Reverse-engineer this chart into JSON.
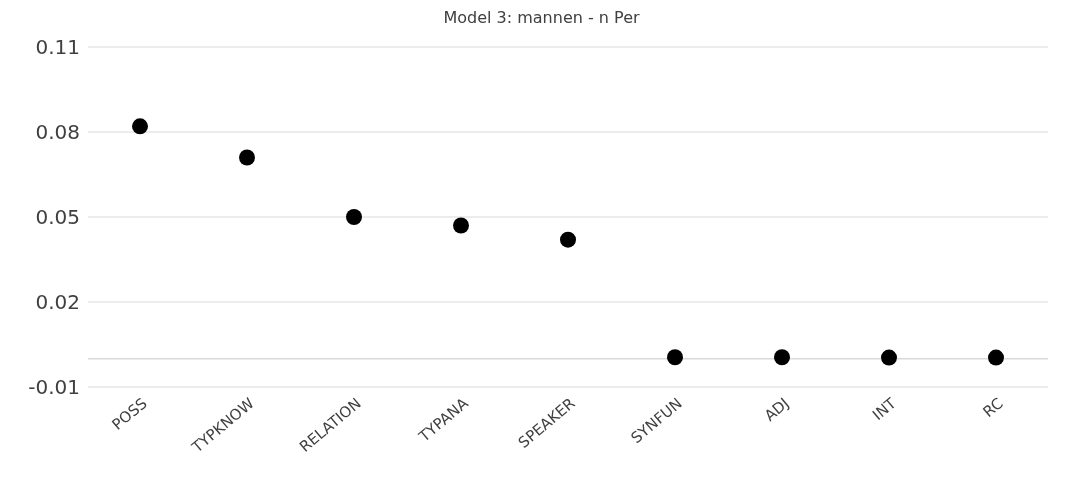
{
  "chart_data": {
    "type": "scatter",
    "title": "Model 3: mannen - n Per",
    "categories": [
      "POSS",
      "TYPKNOW",
      "RELATION",
      "TYPANA",
      "SPEAKER",
      "SYNFUN",
      "ADJ",
      "INT",
      "RC"
    ],
    "series": [
      {
        "color": "#000000",
        "values": [
          0.082,
          0.071,
          0.05,
          0.047,
          0.042,
          0.0005,
          0.0005,
          0.0004,
          0.0004
        ]
      }
    ],
    "ylim": [
      -0.01,
      0.11
    ],
    "yticks": [
      -0.01,
      0.02,
      0.05,
      0.08,
      0.11
    ],
    "grid": "y",
    "marker": "circle",
    "legend": false,
    "ref_lines": [
      {
        "axis": "y",
        "value": 0,
        "color": "#d9d9d9"
      }
    ]
  }
}
